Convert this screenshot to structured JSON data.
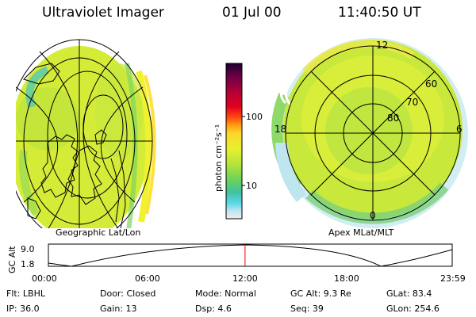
{
  "header": {
    "title": "Ultraviolet Imager",
    "date": "01 Jul 00",
    "time": "11:40:50 UT"
  },
  "left_panel": {
    "caption": "Geographic Lat/Lon"
  },
  "right_panel": {
    "caption": "Apex MLat/MLT",
    "mlt_labels": {
      "top": "12",
      "left": "18",
      "right": "6",
      "bottom": "0"
    },
    "mlat_labels": [
      "60",
      "70",
      "80"
    ]
  },
  "colorbar": {
    "unit_label": "photon cm⁻²s⁻¹",
    "tick_100": "100",
    "tick_10": "10",
    "scale": "log",
    "colors": [
      "#1a0030",
      "#6a0045",
      "#b0003a",
      "#e3001f",
      "#ff4d10",
      "#ffa012",
      "#ffd52c",
      "#e6f02f",
      "#b4e33a",
      "#6cd15a",
      "#3fc2a0",
      "#5ad7ea",
      "#bfe6ee",
      "#eeeeee"
    ]
  },
  "timeline": {
    "axis_label": "GC Alt",
    "ytick_top": "9.0",
    "ytick_bottom": "1.8",
    "xticks": [
      "00:00",
      "06:00",
      "12:00",
      "18:00",
      "23:59"
    ],
    "current_time_fraction": 0.487,
    "marker_color": "#e00000"
  },
  "info": {
    "flt": "Flt: LBHL",
    "door": "Door: Closed",
    "mode": "Mode: Normal",
    "gc_alt": "GC Alt: 9.3 Re",
    "glat": "GLat:  83.4",
    "ip": "IP: 36.0",
    "gain": "Gain: 13",
    "dsp": "Dsp:     4.6",
    "seq": "Seq: 39",
    "glon": "GLon: 254.6"
  }
}
